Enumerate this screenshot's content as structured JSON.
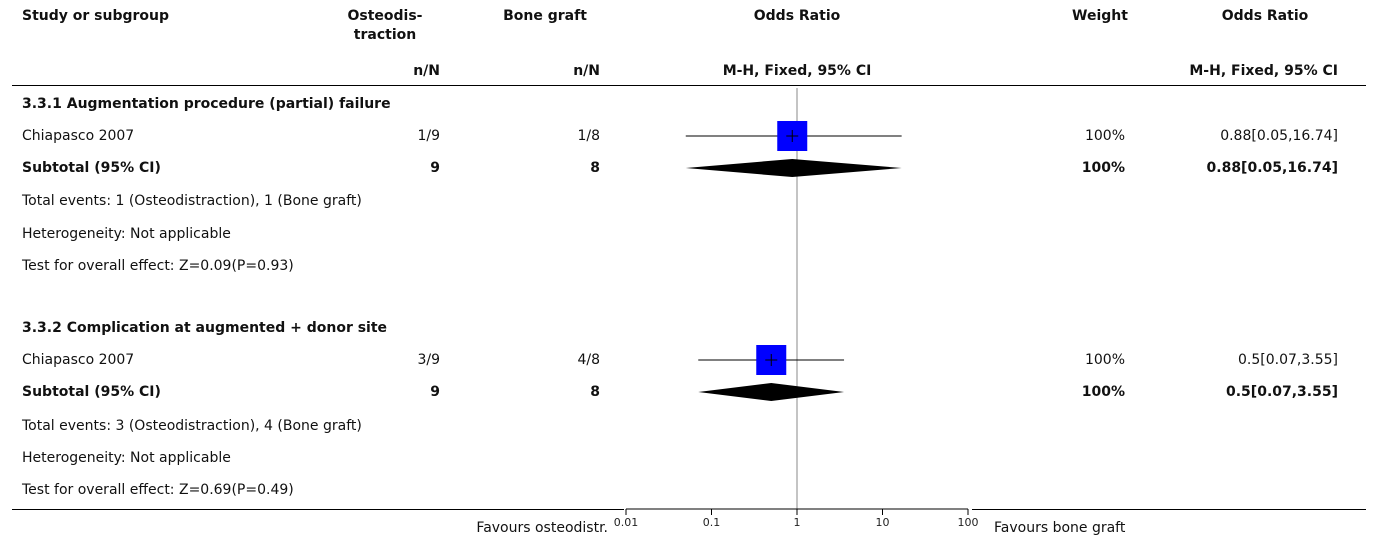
{
  "header": {
    "study": "Study or subgroup",
    "group1_line1": "Osteodis-",
    "group1_line2": "traction",
    "group2": "Bone graft",
    "effect": "Odds Ratio",
    "weight": "Weight",
    "effect2": "Odds Ratio",
    "group1_sub": "n/N",
    "group2_sub": "n/N",
    "effect_sub": "M-H, Fixed, 95% CI",
    "effect2_sub": "M-H, Fixed, 95% CI"
  },
  "footer": {
    "left_label": "Favours osteodistr.",
    "right_label": "Favours bone graft"
  },
  "colors": {
    "square": "#0000ff",
    "diamond": "#000000",
    "line": "#000000"
  },
  "chart_data": {
    "type": "forest",
    "scale": "log",
    "xlim": [
      0.01,
      100
    ],
    "ticks": [
      "0.01",
      "0.1",
      "1",
      "10",
      "100"
    ],
    "tick_values": [
      0.01,
      0.1,
      1,
      10,
      100
    ],
    "subgroups": [
      {
        "title": "3.3.1 Augmentation procedure (partial) failure",
        "studies": [
          {
            "name": "Chiapasco 2007",
            "g1": "1/9",
            "g2": "1/8",
            "weight": "100%",
            "ci_text": "0.88[0.05,16.74]",
            "or": 0.88,
            "lo": 0.05,
            "hi": 16.74
          }
        ],
        "subtotal": {
          "label": "Subtotal (95% CI)",
          "g1": "9",
          "g2": "8",
          "weight": "100%",
          "ci_text": "0.88[0.05,16.74]",
          "or": 0.88,
          "lo": 0.05,
          "hi": 16.74
        },
        "total_events": "Total events: 1 (Osteodistraction), 1 (Bone graft)",
        "heterogeneity": "Heterogeneity: Not applicable",
        "overall_effect": "Test for overall effect: Z=0.09(P=0.93)"
      },
      {
        "title": "3.3.2 Complication at augmented + donor site",
        "studies": [
          {
            "name": "Chiapasco 2007",
            "g1": "3/9",
            "g2": "4/8",
            "weight": "100%",
            "ci_text": "0.5[0.07,3.55]",
            "or": 0.5,
            "lo": 0.07,
            "hi": 3.55
          }
        ],
        "subtotal": {
          "label": "Subtotal (95% CI)",
          "g1": "9",
          "g2": "8",
          "weight": "100%",
          "ci_text": "0.5[0.07,3.55]",
          "or": 0.5,
          "lo": 0.07,
          "hi": 3.55
        },
        "total_events": "Total events: 3 (Osteodistraction), 4 (Bone graft)",
        "heterogeneity": "Heterogeneity: Not applicable",
        "overall_effect": "Test for overall effect: Z=0.69(P=0.49)"
      }
    ]
  }
}
